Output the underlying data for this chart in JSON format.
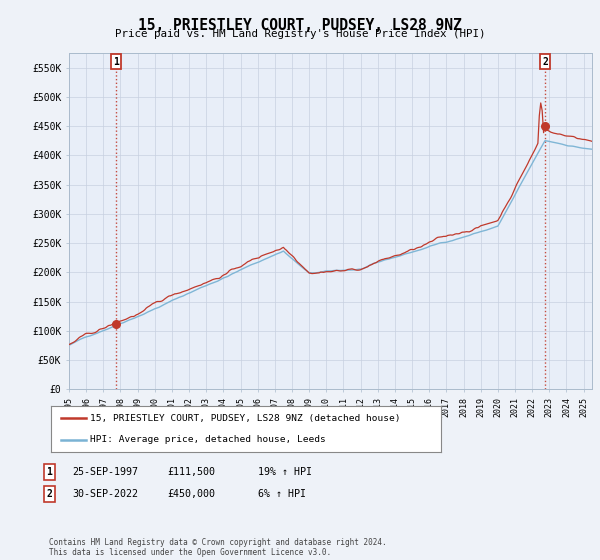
{
  "title": "15, PRIESTLEY COURT, PUDSEY, LS28 9NZ",
  "subtitle": "Price paid vs. HM Land Registry's House Price Index (HPI)",
  "ylabel_ticks": [
    "£0",
    "£50K",
    "£100K",
    "£150K",
    "£200K",
    "£250K",
    "£300K",
    "£350K",
    "£400K",
    "£450K",
    "£500K",
    "£550K"
  ],
  "ytick_values": [
    0,
    50000,
    100000,
    150000,
    200000,
    250000,
    300000,
    350000,
    400000,
    450000,
    500000,
    550000
  ],
  "ylim": [
    0,
    575000
  ],
  "xlim_start": 1995.0,
  "xlim_end": 2025.5,
  "sale1_date": 1997.73,
  "sale1_price": 111500,
  "sale1_label": "1",
  "sale2_date": 2022.75,
  "sale2_price": 450000,
  "sale2_label": "2",
  "hpi_color": "#7ab3d4",
  "property_color": "#c0392b",
  "vline_color": "#c0392b",
  "legend_property": "15, PRIESTLEY COURT, PUDSEY, LS28 9NZ (detached house)",
  "legend_hpi": "HPI: Average price, detached house, Leeds",
  "table_row1": [
    "1",
    "25-SEP-1997",
    "£111,500",
    "19% ↑ HPI"
  ],
  "table_row2": [
    "2",
    "30-SEP-2022",
    "£450,000",
    "6% ↑ HPI"
  ],
  "footnote": "Contains HM Land Registry data © Crown copyright and database right 2024.\nThis data is licensed under the Open Government Licence v3.0.",
  "background_color": "#eef2f8",
  "plot_bg_color": "#e8eef8",
  "grid_color": "#c8d0e0"
}
